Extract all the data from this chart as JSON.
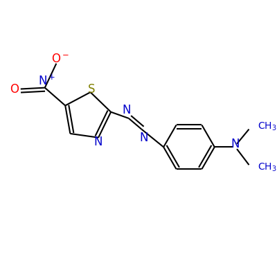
{
  "bg_color": "#ffffff",
  "bond_color": "#000000",
  "lw": 1.5,
  "atoms": {
    "S": {
      "color": "#808000",
      "fontsize": 12
    },
    "N": {
      "color": "#0000cc",
      "fontsize": 12
    },
    "O": {
      "color": "#ff0000",
      "fontsize": 12
    },
    "CH3": {
      "color": "#0000cc",
      "fontsize": 10
    }
  },
  "figsize": [
    4.0,
    4.0
  ],
  "dpi": 100
}
